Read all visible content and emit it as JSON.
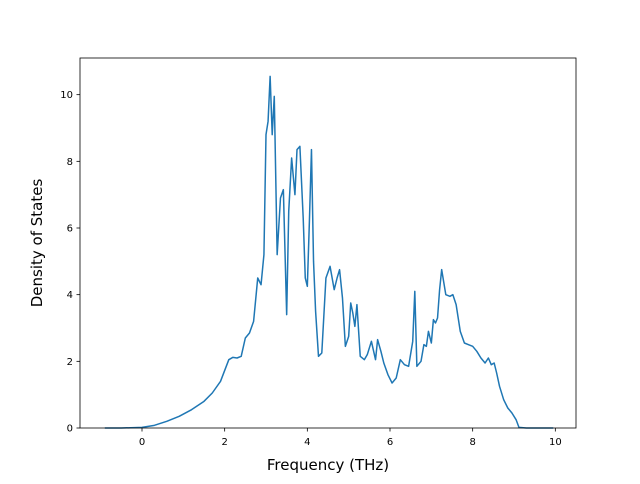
{
  "chart_data": {
    "type": "line",
    "xlabel": "Frequency (THz)",
    "ylabel": "Density of States",
    "xlim": [
      -1.5,
      10.5
    ],
    "ylim": [
      0,
      11.1
    ],
    "x_ticks": [
      0,
      2,
      4,
      6,
      8,
      10
    ],
    "y_ticks": [
      0,
      2,
      4,
      6,
      8,
      10
    ],
    "grid": false,
    "colors": {
      "line": "#1f77b4",
      "axes": "#000000",
      "background": "#ffffff"
    },
    "series": [
      {
        "x": [
          -0.9,
          -0.5,
          0.0,
          0.3,
          0.6,
          0.9,
          1.2,
          1.5,
          1.7,
          1.9,
          2.1,
          2.2,
          2.3,
          2.4,
          2.5,
          2.6,
          2.7,
          2.8,
          2.88,
          2.95,
          3.0,
          3.05,
          3.1,
          3.15,
          3.2,
          3.27,
          3.35,
          3.42,
          3.5,
          3.55,
          3.62,
          3.7,
          3.75,
          3.82,
          3.9,
          3.95,
          4.0,
          4.05,
          4.1,
          4.15,
          4.2,
          4.27,
          4.35,
          4.45,
          4.55,
          4.65,
          4.72,
          4.78,
          4.85,
          4.92,
          5.0,
          5.05,
          5.1,
          5.15,
          5.2,
          5.28,
          5.38,
          5.45,
          5.55,
          5.65,
          5.7,
          5.78,
          5.85,
          5.95,
          6.05,
          6.15,
          6.25,
          6.35,
          6.45,
          6.55,
          6.6,
          6.65,
          6.75,
          6.82,
          6.88,
          6.93,
          7.0,
          7.05,
          7.1,
          7.15,
          7.2,
          7.25,
          7.35,
          7.45,
          7.52,
          7.6,
          7.7,
          7.8,
          7.9,
          8.0,
          8.1,
          8.2,
          8.3,
          8.38,
          8.45,
          8.52,
          8.58,
          8.65,
          8.75,
          8.85,
          8.95,
          9.05,
          9.12,
          9.3,
          9.6,
          9.95
        ],
        "y": [
          0,
          0,
          0.02,
          0.08,
          0.2,
          0.35,
          0.55,
          0.8,
          1.05,
          1.4,
          2.05,
          2.12,
          2.1,
          2.15,
          2.7,
          2.85,
          3.2,
          4.5,
          4.3,
          5.2,
          8.8,
          9.2,
          10.55,
          8.8,
          9.95,
          5.2,
          6.9,
          7.15,
          3.4,
          6.5,
          8.1,
          7.0,
          8.35,
          8.45,
          6.3,
          4.5,
          4.25,
          6.2,
          8.35,
          5.0,
          3.5,
          2.15,
          2.25,
          4.5,
          4.85,
          4.15,
          4.5,
          4.75,
          3.9,
          2.45,
          2.75,
          3.75,
          3.45,
          3.05,
          3.7,
          2.15,
          2.05,
          2.2,
          2.6,
          2.05,
          2.65,
          2.3,
          1.95,
          1.6,
          1.35,
          1.5,
          2.05,
          1.9,
          1.85,
          2.6,
          4.1,
          1.85,
          2.0,
          2.5,
          2.45,
          2.9,
          2.55,
          3.25,
          3.15,
          3.3,
          4.15,
          4.75,
          4.0,
          3.95,
          4.0,
          3.7,
          2.9,
          2.55,
          2.5,
          2.45,
          2.3,
          2.1,
          1.95,
          2.1,
          1.9,
          1.95,
          1.65,
          1.25,
          0.85,
          0.6,
          0.45,
          0.25,
          0.02,
          0,
          0,
          0
        ]
      }
    ]
  }
}
